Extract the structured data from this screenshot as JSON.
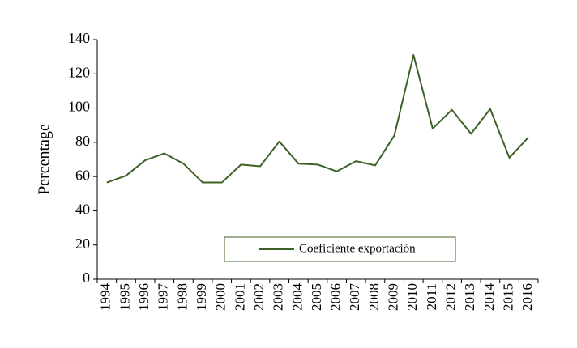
{
  "chart_data": {
    "type": "line",
    "title": "",
    "xlabel": "",
    "ylabel": "Percentage",
    "ylim": [
      0,
      140
    ],
    "yticks": [
      0,
      20,
      40,
      60,
      80,
      100,
      120,
      140
    ],
    "grid": false,
    "legend_position": "bottom-center inside plot",
    "categories": [
      "1994",
      "1995",
      "1996",
      "1997",
      "1998",
      "1999",
      "2000",
      "2001",
      "2002",
      "2003",
      "2004",
      "2005",
      "2006",
      "2007",
      "2008",
      "2009",
      "2010",
      "2011",
      "2012",
      "2013",
      "2014",
      "2015",
      "2016"
    ],
    "series": [
      {
        "name": "Coeficiente exportación",
        "color": "#3d6126",
        "values": [
          56.5,
          60.5,
          69.5,
          73.5,
          67.5,
          56.5,
          56.5,
          67,
          66,
          80.5,
          67.5,
          67,
          63,
          69,
          66.5,
          84,
          131,
          88,
          99,
          85,
          99.5,
          71,
          83
        ]
      }
    ]
  }
}
